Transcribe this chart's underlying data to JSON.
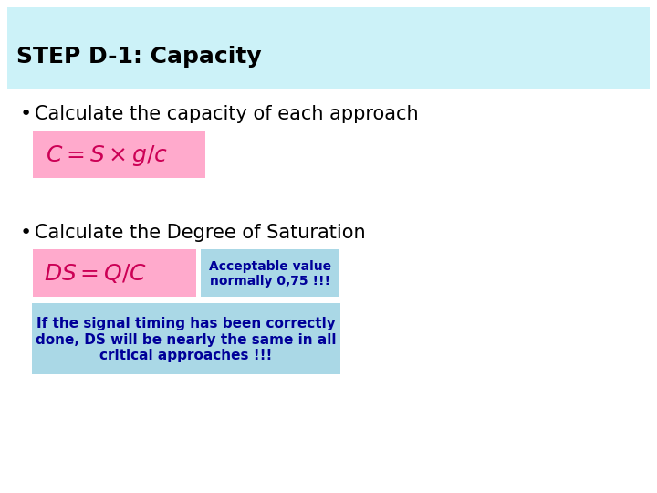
{
  "background_color": "#ffffff",
  "header_bg_color": "#ccf2f8",
  "title_text": "STEP D-1: Capacity",
  "title_fontsize": 18,
  "title_color": "#000000",
  "bullet1_text": "Calculate the capacity of each approach",
  "bullet_fontsize": 15,
  "formula1_text": "$C = S \\times g / c$",
  "formula1_bg": "#ffaacc",
  "formula1_fontsize": 18,
  "formula1_color": "#cc0055",
  "bullet2_text": "Calculate the Degree of Saturation",
  "formula2_text": "$DS = Q / C$",
  "formula2_bg": "#ffaacc",
  "formula2_fontsize": 18,
  "formula2_color": "#cc0055",
  "note1_text": "Acceptable value\nnormally 0,75 !!!",
  "note1_bg": "#aad8e6",
  "note1_color": "#000099",
  "note1_fontsize": 10,
  "note2_text": "If the signal timing has been correctly\ndone, DS will be nearly the same in all\ncritical approaches !!!",
  "note2_bg": "#aad8e6",
  "note2_color": "#000099",
  "note2_fontsize": 11
}
